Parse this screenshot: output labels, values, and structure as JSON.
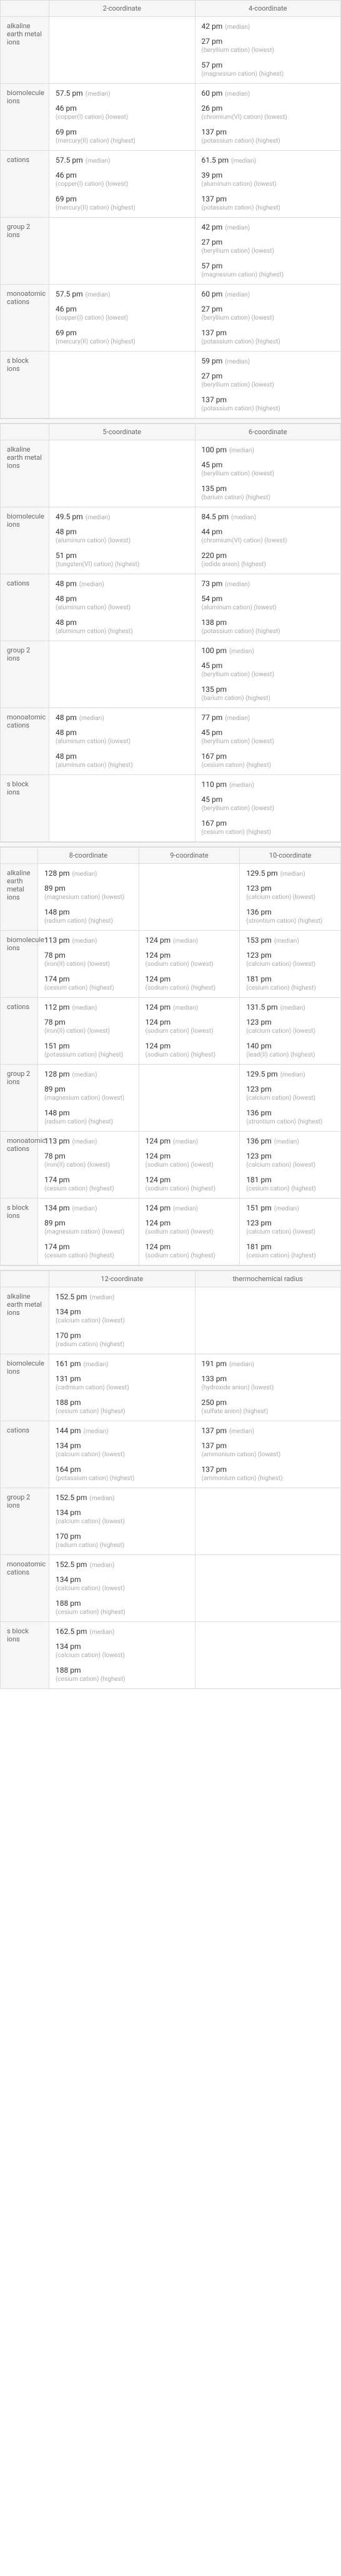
{
  "s1": {
    "cols": [
      "2-coordinate",
      "4-coordinate"
    ],
    "rows": [
      {
        "label": "alkaline earth metal ions",
        "cells": [
          [],
          [
            {
              "v": "42 pm",
              "n": "(median)"
            },
            {
              "v": "27 pm",
              "s": "(beryllium cation) (lowest)"
            },
            {
              "v": "57 pm",
              "s": "(magnesium cation) (highest)"
            }
          ]
        ]
      },
      {
        "label": "biomolecule ions",
        "cells": [
          [
            {
              "v": "57.5 pm",
              "n": "(median)"
            },
            {
              "v": "46 pm",
              "s": "(copper(I) cation) (lowest)"
            },
            {
              "v": "69 pm",
              "s": "(mercury(II) cation) (highest)"
            }
          ],
          [
            {
              "v": "60 pm",
              "n": "(median)"
            },
            {
              "v": "26 pm",
              "s": "(chromium(VI) cation) (lowest)"
            },
            {
              "v": "137 pm",
              "s": "(potassium cation) (highest)"
            }
          ]
        ]
      },
      {
        "label": "cations",
        "cells": [
          [
            {
              "v": "57.5 pm",
              "n": "(median)"
            },
            {
              "v": "46 pm",
              "s": "(copper(I) cation) (lowest)"
            },
            {
              "v": "69 pm",
              "s": "(mercury(II) cation) (highest)"
            }
          ],
          [
            {
              "v": "61.5 pm",
              "n": "(median)"
            },
            {
              "v": "39 pm",
              "s": "(aluminum cation) (lowest)"
            },
            {
              "v": "137 pm",
              "s": "(potassium cation) (highest)"
            }
          ]
        ]
      },
      {
        "label": "group 2 ions",
        "cells": [
          [],
          [
            {
              "v": "42 pm",
              "n": "(median)"
            },
            {
              "v": "27 pm",
              "s": "(beryllium cation) (lowest)"
            },
            {
              "v": "57 pm",
              "s": "(magnesium cation) (highest)"
            }
          ]
        ]
      },
      {
        "label": "monoatomic cations",
        "cells": [
          [
            {
              "v": "57.5 pm",
              "n": "(median)"
            },
            {
              "v": "46 pm",
              "s": "(copper(I) cation) (lowest)"
            },
            {
              "v": "69 pm",
              "s": "(mercury(II) cation) (highest)"
            }
          ],
          [
            {
              "v": "60 pm",
              "n": "(median)"
            },
            {
              "v": "27 pm",
              "s": "(beryllium cation) (lowest)"
            },
            {
              "v": "137 pm",
              "s": "(potassium cation) (highest)"
            }
          ]
        ]
      },
      {
        "label": "s block ions",
        "cells": [
          [],
          [
            {
              "v": "59 pm",
              "n": "(median)"
            },
            {
              "v": "27 pm",
              "s": "(beryllium cation) (lowest)"
            },
            {
              "v": "137 pm",
              "s": "(potassium cation) (highest)"
            }
          ]
        ]
      }
    ]
  },
  "s2": {
    "cols": [
      "5-coordinate",
      "6-coordinate"
    ],
    "rows": [
      {
        "label": "alkaline earth metal ions",
        "cells": [
          [],
          [
            {
              "v": "100 pm",
              "n": "(median)"
            },
            {
              "v": "45 pm",
              "s": "(beryllium cation) (lowest)"
            },
            {
              "v": "135 pm",
              "s": "(barium cation) (highest)"
            }
          ]
        ]
      },
      {
        "label": "biomolecule ions",
        "cells": [
          [
            {
              "v": "49.5 pm",
              "n": "(median)"
            },
            {
              "v": "48 pm",
              "s": "(aluminum cation) (lowest)"
            },
            {
              "v": "51 pm",
              "s": "(tungsten(VI) cation) (highest)"
            }
          ],
          [
            {
              "v": "84.5 pm",
              "n": "(median)"
            },
            {
              "v": "44 pm",
              "s": "(chromium(VI) cation) (lowest)"
            },
            {
              "v": "220 pm",
              "s": "(iodide anion) (highest)"
            }
          ]
        ]
      },
      {
        "label": "cations",
        "cells": [
          [
            {
              "v": "48 pm",
              "n": "(median)"
            },
            {
              "v": "48 pm",
              "s": "(aluminum cation) (lowest)"
            },
            {
              "v": "48 pm",
              "s": "(aluminum cation) (highest)"
            }
          ],
          [
            {
              "v": "73 pm",
              "n": "(median)"
            },
            {
              "v": "54 pm",
              "s": "(aluminum cation) (lowest)"
            },
            {
              "v": "138 pm",
              "s": "(potassium cation) (highest)"
            }
          ]
        ]
      },
      {
        "label": "group 2 ions",
        "cells": [
          [],
          [
            {
              "v": "100 pm",
              "n": "(median)"
            },
            {
              "v": "45 pm",
              "s": "(beryllium cation) (lowest)"
            },
            {
              "v": "135 pm",
              "s": "(barium cation) (highest)"
            }
          ]
        ]
      },
      {
        "label": "monoatomic cations",
        "cells": [
          [
            {
              "v": "48 pm",
              "n": "(median)"
            },
            {
              "v": "48 pm",
              "s": "(aluminum cation) (lowest)"
            },
            {
              "v": "48 pm",
              "s": "(aluminum cation) (highest)"
            }
          ],
          [
            {
              "v": "77 pm",
              "n": "(median)"
            },
            {
              "v": "45 pm",
              "s": "(beryllium cation) (lowest)"
            },
            {
              "v": "167 pm",
              "s": "(cesium cation) (highest)"
            }
          ]
        ]
      },
      {
        "label": "s block ions",
        "cells": [
          [],
          [
            {
              "v": "110 pm",
              "n": "(median)"
            },
            {
              "v": "45 pm",
              "s": "(beryllium cation) (lowest)"
            },
            {
              "v": "167 pm",
              "s": "(cesium cation) (highest)"
            }
          ]
        ]
      }
    ]
  },
  "s3": {
    "cols": [
      "8-coordinate",
      "9-coordinate",
      "10-coordinate"
    ],
    "rows": [
      {
        "label": "alkaline earth metal ions",
        "cells": [
          [
            {
              "v": "128 pm",
              "n": "(median)"
            },
            {
              "v": "89 pm",
              "s": "(magnesium cation) (lowest)"
            },
            {
              "v": "148 pm",
              "s": "(radium cation) (highest)"
            }
          ],
          [],
          [
            {
              "v": "129.5 pm",
              "n": "(median)"
            },
            {
              "v": "123 pm",
              "s": "(calcium cation) (lowest)"
            },
            {
              "v": "136 pm",
              "s": "(strontium cation) (highest)"
            }
          ]
        ]
      },
      {
        "label": "biomolecule ions",
        "cells": [
          [
            {
              "v": "113 pm",
              "n": "(median)"
            },
            {
              "v": "78 pm",
              "s": "(iron(II) cation) (lowest)"
            },
            {
              "v": "174 pm",
              "s": "(cesium cation) (highest)"
            }
          ],
          [
            {
              "v": "124 pm",
              "n": "(median)"
            },
            {
              "v": "124 pm",
              "s": "(sodium cation) (lowest)"
            },
            {
              "v": "124 pm",
              "s": "(sodium cation) (highest)"
            }
          ],
          [
            {
              "v": "153 pm",
              "n": "(median)"
            },
            {
              "v": "123 pm",
              "s": "(calcium cation) (lowest)"
            },
            {
              "v": "181 pm",
              "s": "(cesium cation) (highest)"
            }
          ]
        ]
      },
      {
        "label": "cations",
        "cells": [
          [
            {
              "v": "112 pm",
              "n": "(median)"
            },
            {
              "v": "78 pm",
              "s": "(iron(II) cation) (lowest)"
            },
            {
              "v": "151 pm",
              "s": "(potassium cation) (highest)"
            }
          ],
          [
            {
              "v": "124 pm",
              "n": "(median)"
            },
            {
              "v": "124 pm",
              "s": "(sodium cation) (lowest)"
            },
            {
              "v": "124 pm",
              "s": "(sodium cation) (highest)"
            }
          ],
          [
            {
              "v": "131.5 pm",
              "n": "(median)"
            },
            {
              "v": "123 pm",
              "s": "(calcium cation) (lowest)"
            },
            {
              "v": "140 pm",
              "s": "(lead(II) cation) (highest)"
            }
          ]
        ]
      },
      {
        "label": "group 2 ions",
        "cells": [
          [
            {
              "v": "128 pm",
              "n": "(median)"
            },
            {
              "v": "89 pm",
              "s": "(magnesium cation) (lowest)"
            },
            {
              "v": "148 pm",
              "s": "(radium cation) (highest)"
            }
          ],
          [],
          [
            {
              "v": "129.5 pm",
              "n": "(median)"
            },
            {
              "v": "123 pm",
              "s": "(calcium cation) (lowest)"
            },
            {
              "v": "136 pm",
              "s": "(strontium cation) (highest)"
            }
          ]
        ]
      },
      {
        "label": "monoatomic cations",
        "cells": [
          [
            {
              "v": "113 pm",
              "n": "(median)"
            },
            {
              "v": "78 pm",
              "s": "(iron(II) cation) (lowest)"
            },
            {
              "v": "174 pm",
              "s": "(cesium cation) (highest)"
            }
          ],
          [
            {
              "v": "124 pm",
              "n": "(median)"
            },
            {
              "v": "124 pm",
              "s": "(sodium cation) (lowest)"
            },
            {
              "v": "124 pm",
              "s": "(sodium cation) (highest)"
            }
          ],
          [
            {
              "v": "136 pm",
              "n": "(median)"
            },
            {
              "v": "123 pm",
              "s": "(calcium cation) (lowest)"
            },
            {
              "v": "181 pm",
              "s": "(cesium cation) (highest)"
            }
          ]
        ]
      },
      {
        "label": "s block ions",
        "cells": [
          [
            {
              "v": "134 pm",
              "n": "(median)"
            },
            {
              "v": "89 pm",
              "s": "(magnesium cation) (lowest)"
            },
            {
              "v": "174 pm",
              "s": "(cesium cation) (highest)"
            }
          ],
          [
            {
              "v": "124 pm",
              "n": "(median)"
            },
            {
              "v": "124 pm",
              "s": "(sodium cation) (lowest)"
            },
            {
              "v": "124 pm",
              "s": "(sodium cation) (highest)"
            }
          ],
          [
            {
              "v": "151 pm",
              "n": "(median)"
            },
            {
              "v": "123 pm",
              "s": "(calcium cation) (lowest)"
            },
            {
              "v": "181 pm",
              "s": "(cesium cation) (highest)"
            }
          ]
        ]
      }
    ]
  },
  "s4": {
    "cols": [
      "12-coordinate",
      "thermochemical radius"
    ],
    "rows": [
      {
        "label": "alkaline earth metal ions",
        "cells": [
          [
            {
              "v": "152.5 pm",
              "n": "(median)"
            },
            {
              "v": "134 pm",
              "s": "(calcium cation) (lowest)"
            },
            {
              "v": "170 pm",
              "s": "(radium cation) (highest)"
            }
          ],
          []
        ]
      },
      {
        "label": "biomolecule ions",
        "cells": [
          [
            {
              "v": "161 pm",
              "n": "(median)"
            },
            {
              "v": "131 pm",
              "s": "(cadmium cation) (lowest)"
            },
            {
              "v": "188 pm",
              "s": "(cesium cation) (highest)"
            }
          ],
          [
            {
              "v": "191 pm",
              "n": "(median)"
            },
            {
              "v": "133 pm",
              "s": "(hydroxide anion) (lowest)"
            },
            {
              "v": "250 pm",
              "s": "(sulfate anion) (highest)"
            }
          ]
        ]
      },
      {
        "label": "cations",
        "cells": [
          [
            {
              "v": "144 pm",
              "n": "(median)"
            },
            {
              "v": "134 pm",
              "s": "(calcium cation) (lowest)"
            },
            {
              "v": "164 pm",
              "s": "(potassium cation) (highest)"
            }
          ],
          [
            {
              "v": "137 pm",
              "n": "(median)"
            },
            {
              "v": "137 pm",
              "s": "(ammonium cation) (lowest)"
            },
            {
              "v": "137 pm",
              "s": "(ammonium cation) (highest)"
            }
          ]
        ]
      },
      {
        "label": "group 2 ions",
        "cells": [
          [
            {
              "v": "152.5 pm",
              "n": "(median)"
            },
            {
              "v": "134 pm",
              "s": "(calcium cation) (lowest)"
            },
            {
              "v": "170 pm",
              "s": "(radium cation) (highest)"
            }
          ],
          []
        ]
      },
      {
        "label": "monoatomic cations",
        "cells": [
          [
            {
              "v": "152.5 pm",
              "n": "(median)"
            },
            {
              "v": "134 pm",
              "s": "(calcium cation) (lowest)"
            },
            {
              "v": "188 pm",
              "s": "(cesium cation) (highest)"
            }
          ],
          []
        ]
      },
      {
        "label": "s block ions",
        "cells": [
          [
            {
              "v": "162.5 pm",
              "n": "(median)"
            },
            {
              "v": "134 pm",
              "s": "(calcium cation) (lowest)"
            },
            {
              "v": "188 pm",
              "s": "(cesium cation) (highest)"
            }
          ],
          []
        ]
      }
    ]
  }
}
